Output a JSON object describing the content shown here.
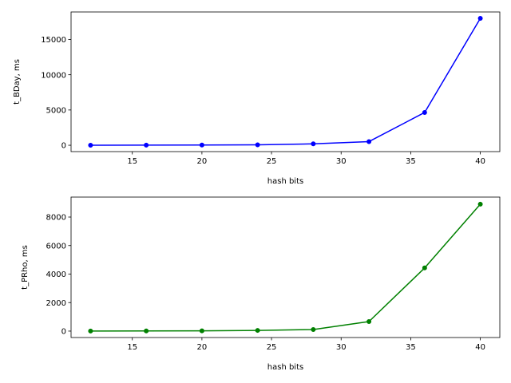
{
  "chart_data": [
    {
      "type": "line",
      "xlabel": "hash bits",
      "ylabel": "t_BDay, ms",
      "xlim": [
        10.6,
        41.4
      ],
      "ylim": [
        -900,
        18900
      ],
      "xticks": [
        15,
        20,
        25,
        30,
        35,
        40
      ],
      "yticks": [
        0,
        5000,
        10000,
        15000
      ],
      "grid": false,
      "series": [
        {
          "color": "#0000ff",
          "x": [
            12,
            16,
            20,
            24,
            28,
            32,
            36,
            40
          ],
          "y": [
            10,
            20,
            30,
            60,
            200,
            520,
            4650,
            18000
          ]
        }
      ]
    },
    {
      "type": "line",
      "xlabel": "hash bits",
      "ylabel": "t_PRho, ms",
      "xlim": [
        10.6,
        41.4
      ],
      "ylim": [
        -450,
        9400
      ],
      "xticks": [
        15,
        20,
        25,
        30,
        35,
        40
      ],
      "yticks": [
        0,
        2000,
        4000,
        6000,
        8000
      ],
      "grid": false,
      "series": [
        {
          "color": "#008000",
          "x": [
            12,
            16,
            20,
            24,
            28,
            32,
            36,
            40
          ],
          "y": [
            5,
            10,
            20,
            50,
            110,
            670,
            4430,
            8900
          ]
        }
      ]
    }
  ]
}
